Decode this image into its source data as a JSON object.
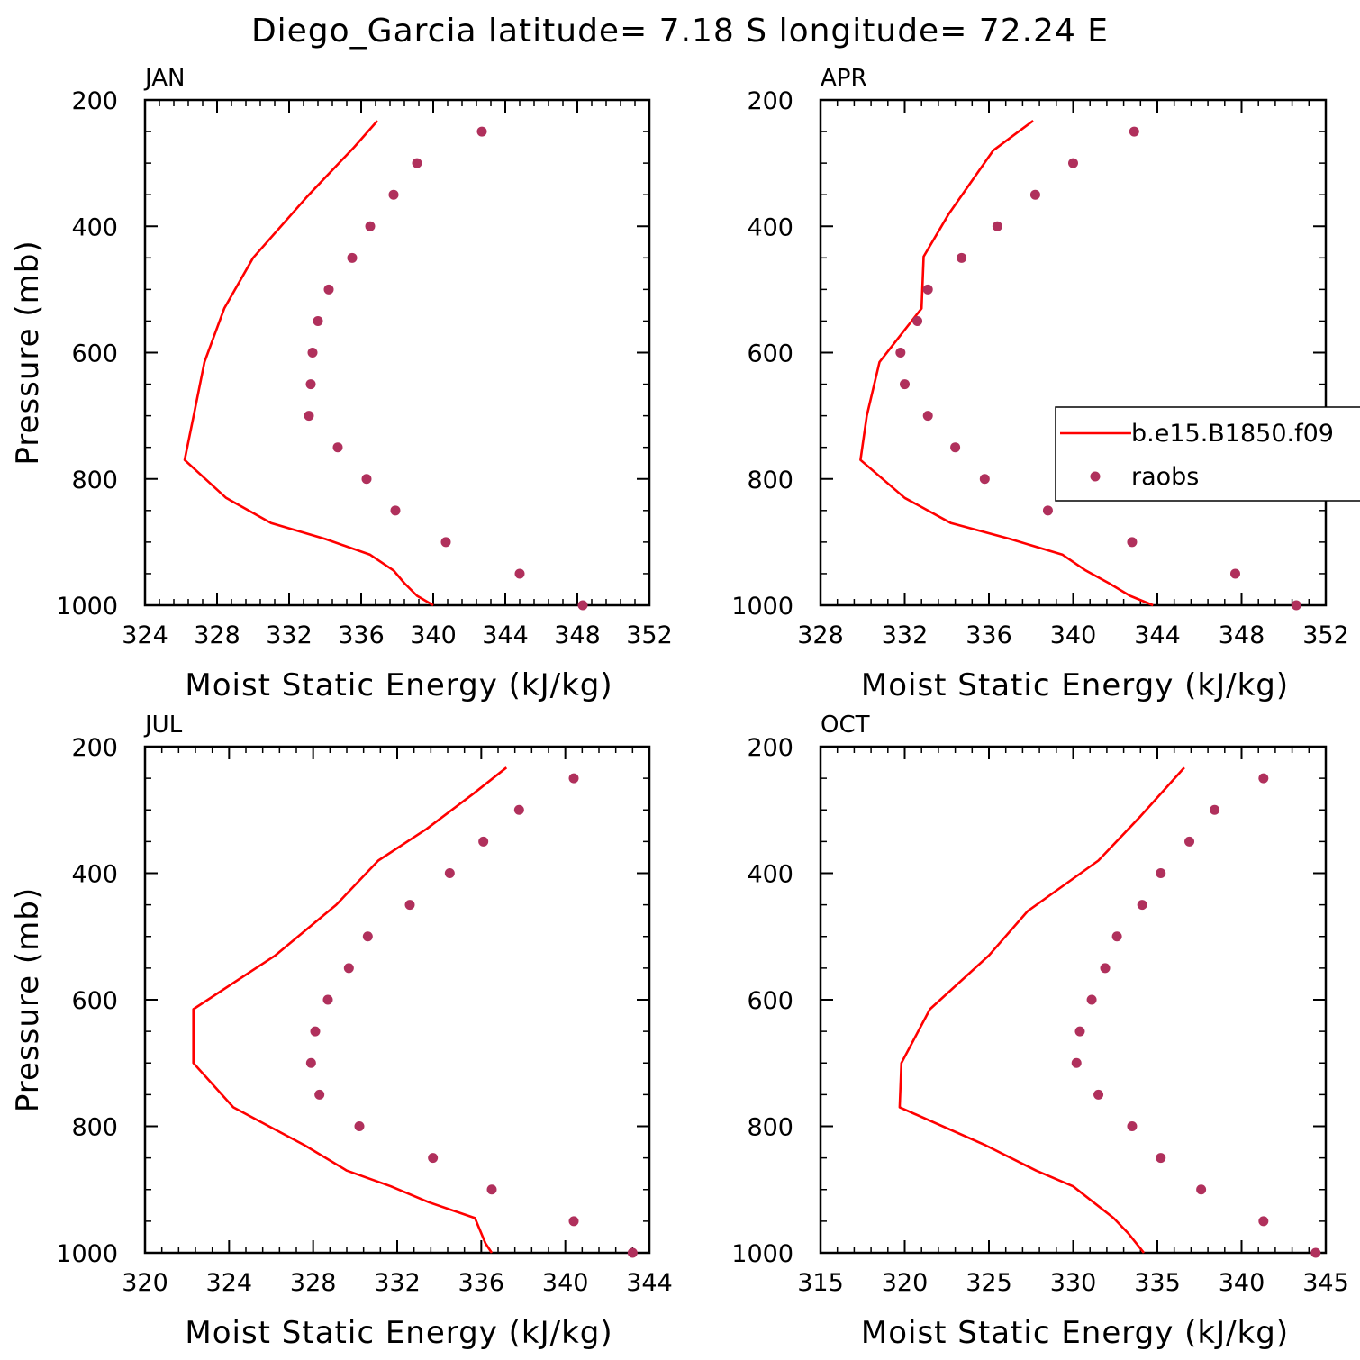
{
  "title": "Diego_Garcia  latitude= 7.18 S longitude= 72.24 E",
  "colors": {
    "model": "#ff0000",
    "obs": "#b0305c",
    "axis": "#000000"
  },
  "legend": {
    "model_label": "b.e15.B1850.f09",
    "obs_label": "raobs",
    "panel": 1
  },
  "chart_data": [
    {
      "type": "line",
      "panel_label": "JAN",
      "xlabel": "Moist Static Energy (kJ/kg)",
      "ylabel": "Pressure (mb)",
      "xlim": [
        324,
        352
      ],
      "ylim": [
        200,
        1000
      ],
      "y_inverted": true,
      "xticks": [
        324,
        328,
        332,
        336,
        340,
        344,
        348,
        352
      ],
      "yticks": [
        200,
        400,
        600,
        800,
        1000
      ],
      "series": [
        {
          "name": "b.e15.B1850.f09",
          "style": "line",
          "x": [
            336.9,
            335.6,
            333.0,
            330.0,
            328.4,
            327.3,
            326.7,
            326.2,
            328.5,
            331.0,
            334.0,
            336.5,
            337.8,
            338.4,
            339.1,
            340.0
          ],
          "y": [
            233,
            275,
            353,
            450,
            530,
            615,
            700,
            770,
            830,
            870,
            895,
            920,
            945,
            965,
            985,
            1000
          ]
        },
        {
          "name": "raobs",
          "style": "markers",
          "x": [
            342.7,
            339.1,
            337.8,
            336.5,
            335.5,
            334.2,
            333.6,
            333.3,
            333.2,
            333.1,
            334.7,
            336.3,
            337.9,
            340.7,
            344.8,
            348.3
          ],
          "y": [
            250,
            300,
            350,
            400,
            450,
            500,
            550,
            600,
            650,
            700,
            750,
            800,
            850,
            900,
            950,
            1000
          ]
        }
      ]
    },
    {
      "type": "line",
      "panel_label": "APR",
      "xlabel": "Moist Static Energy (kJ/kg)",
      "ylabel": "",
      "xlim": [
        328,
        352
      ],
      "ylim": [
        200,
        1000
      ],
      "y_inverted": true,
      "xticks": [
        328,
        332,
        336,
        340,
        344,
        348,
        352
      ],
      "yticks": [
        200,
        400,
        600,
        800,
        1000
      ],
      "series": [
        {
          "name": "b.e15.B1850.f09",
          "style": "line",
          "x": [
            338.1,
            336.2,
            334.1,
            332.9,
            332.8,
            330.8,
            330.2,
            329.9,
            332.0,
            334.2,
            337.0,
            339.5,
            340.6,
            341.7,
            342.7,
            343.8
          ],
          "y": [
            233,
            280,
            380,
            448,
            530,
            615,
            700,
            770,
            830,
            870,
            895,
            920,
            945,
            965,
            985,
            1000
          ]
        },
        {
          "name": "raobs",
          "style": "markers",
          "x": [
            342.9,
            340.0,
            338.2,
            336.4,
            334.7,
            333.1,
            332.6,
            331.8,
            332.0,
            333.1,
            334.4,
            335.8,
            338.8,
            342.8,
            347.7,
            350.6
          ],
          "y": [
            250,
            300,
            350,
            400,
            450,
            500,
            550,
            600,
            650,
            700,
            750,
            800,
            850,
            900,
            950,
            1000
          ]
        }
      ]
    },
    {
      "type": "line",
      "panel_label": "JUL",
      "xlabel": "Moist Static Energy (kJ/kg)",
      "ylabel": "Pressure (mb)",
      "xlim": [
        320,
        344
      ],
      "ylim": [
        200,
        1000
      ],
      "y_inverted": true,
      "xticks": [
        320,
        324,
        328,
        332,
        336,
        340,
        344
      ],
      "yticks": [
        200,
        400,
        600,
        800,
        1000
      ],
      "series": [
        {
          "name": "b.e15.B1850.f09",
          "style": "line",
          "x": [
            337.2,
            335.6,
            333.4,
            331.1,
            329.1,
            326.2,
            322.3,
            322.3,
            324.2,
            327.6,
            329.6,
            331.7,
            333.5,
            335.7,
            336.2,
            336.5
          ],
          "y": [
            233,
            275,
            330,
            380,
            450,
            530,
            615,
            700,
            770,
            830,
            870,
            895,
            920,
            945,
            985,
            1000
          ]
        },
        {
          "name": "raobs",
          "style": "markers",
          "x": [
            340.4,
            337.8,
            336.1,
            334.5,
            332.6,
            330.6,
            329.7,
            328.7,
            328.1,
            327.9,
            328.3,
            330.2,
            333.7,
            336.5,
            340.4,
            343.2
          ],
          "y": [
            250,
            300,
            350,
            400,
            450,
            500,
            550,
            600,
            650,
            700,
            750,
            800,
            850,
            900,
            950,
            1000
          ]
        }
      ]
    },
    {
      "type": "line",
      "panel_label": "OCT",
      "xlabel": "Moist Static Energy (kJ/kg)",
      "ylabel": "",
      "xlim": [
        315,
        345
      ],
      "ylim": [
        200,
        1000
      ],
      "y_inverted": true,
      "xticks": [
        315,
        320,
        325,
        330,
        335,
        340,
        345
      ],
      "yticks": [
        200,
        400,
        600,
        800,
        1000
      ],
      "series": [
        {
          "name": "b.e15.B1850.f09",
          "style": "line",
          "x": [
            336.6,
            334.0,
            331.5,
            327.3,
            325.0,
            321.5,
            319.8,
            319.7,
            324.8,
            327.8,
            330.0,
            332.4,
            333.3,
            334.2
          ],
          "y": [
            233,
            310,
            380,
            460,
            530,
            615,
            700,
            770,
            830,
            870,
            895,
            945,
            970,
            1000
          ]
        },
        {
          "name": "raobs",
          "style": "markers",
          "x": [
            341.3,
            338.4,
            336.9,
            335.2,
            334.1,
            332.6,
            331.9,
            331.1,
            330.4,
            330.2,
            331.5,
            333.5,
            335.2,
            337.6,
            341.3,
            344.4
          ],
          "y": [
            250,
            300,
            350,
            400,
            450,
            500,
            550,
            600,
            650,
            700,
            750,
            800,
            850,
            900,
            950,
            1000
          ]
        }
      ]
    }
  ]
}
